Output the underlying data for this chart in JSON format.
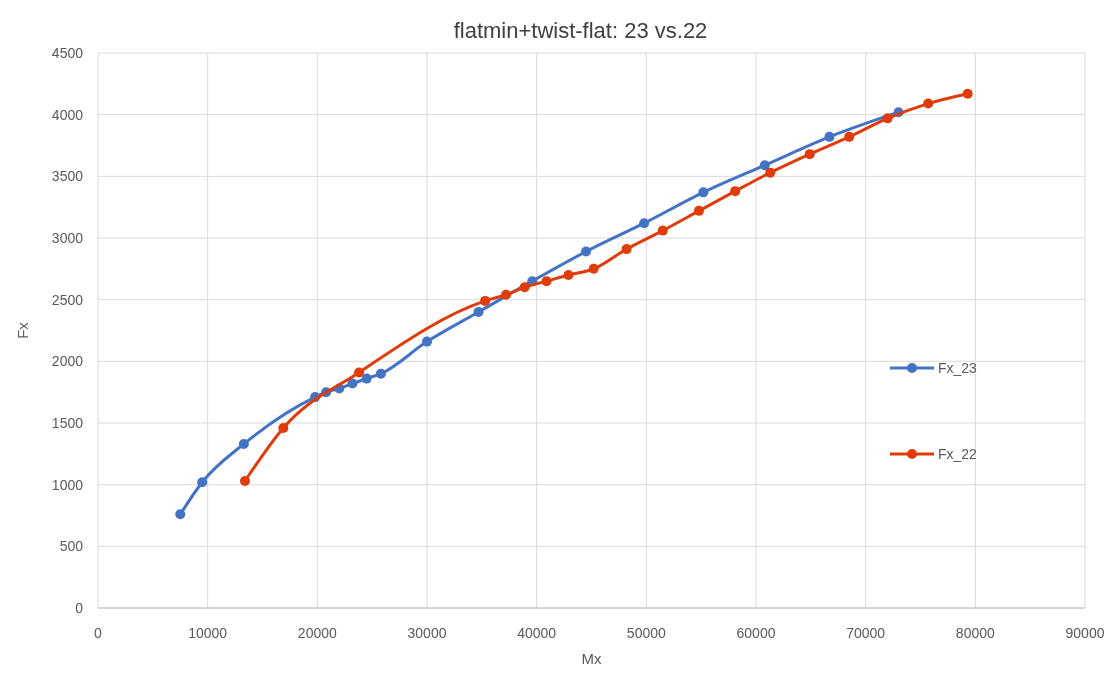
{
  "chart_data": {
    "type": "line",
    "title": "flatmin+twist-flat: 23 vs.22",
    "xlabel": "Mx",
    "ylabel": "Fx",
    "xlim": [
      0,
      90000
    ],
    "xticks": [
      0,
      10000,
      20000,
      30000,
      40000,
      50000,
      60000,
      70000,
      80000,
      90000
    ],
    "ylim": [
      0,
      4500
    ],
    "yticks": [
      0,
      500,
      1000,
      1500,
      2000,
      2500,
      3000,
      3500,
      4000,
      4500
    ],
    "grid": true,
    "legend": "right",
    "marker": "circle",
    "series": [
      {
        "name": "Fx_23",
        "color": "#4472c4",
        "x": [
          7500,
          9500,
          13300,
          19800,
          20800,
          22000,
          23200,
          24500,
          25800,
          30000,
          34700,
          39600,
          44500,
          49800,
          55200,
          60800,
          66700,
          73000
        ],
        "values": [
          760,
          1020,
          1330,
          1710,
          1750,
          1780,
          1820,
          1860,
          1900,
          2160,
          2400,
          2650,
          2890,
          3120,
          3370,
          3590,
          3820,
          4020
        ]
      },
      {
        "name": "Fx_22",
        "color": "#e03c0a",
        "x": [
          13400,
          16900,
          23800,
          35300,
          37200,
          38900,
          40900,
          42900,
          45200,
          48200,
          51500,
          54800,
          58100,
          61300,
          64900,
          68500,
          72000,
          75700,
          79300
        ],
        "values": [
          1030,
          1460,
          1910,
          2490,
          2540,
          2600,
          2650,
          2700,
          2750,
          2910,
          3060,
          3220,
          3380,
          3530,
          3680,
          3820,
          3970,
          4090,
          4170
        ]
      }
    ]
  }
}
